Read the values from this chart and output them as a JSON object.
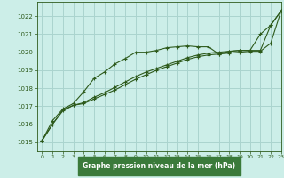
{
  "title": "Graphe pression niveau de la mer (hPa)",
  "bg_color": "#cceee8",
  "grid_color": "#aad4ce",
  "line_color": "#2d5a1b",
  "xlabel_bg": "#3a7a3a",
  "xlabel_fg": "#ffffff",
  "xlim": [
    -0.5,
    23
  ],
  "ylim": [
    1014.5,
    1022.8
  ],
  "yticks": [
    1015,
    1016,
    1017,
    1018,
    1019,
    1020,
    1021,
    1022
  ],
  "xticks": [
    0,
    1,
    2,
    3,
    4,
    5,
    6,
    7,
    8,
    9,
    10,
    11,
    12,
    13,
    14,
    15,
    16,
    17,
    18,
    19,
    20,
    21,
    22,
    23
  ],
  "line1_x": [
    0,
    1,
    2,
    3,
    4,
    5,
    6,
    7,
    8,
    9,
    10,
    11,
    12,
    13,
    14,
    15,
    16,
    17,
    18,
    19,
    20,
    21,
    22,
    23
  ],
  "line1_y": [
    1015.1,
    1016.2,
    1016.85,
    1017.15,
    1017.8,
    1018.55,
    1018.9,
    1019.35,
    1019.65,
    1020.0,
    1020.0,
    1020.1,
    1020.25,
    1020.3,
    1020.35,
    1020.3,
    1020.3,
    1019.9,
    1020.05,
    1020.1,
    1020.1,
    1021.0,
    1021.5,
    1022.3
  ],
  "line2_x": [
    0,
    1,
    2,
    3,
    4,
    5,
    6,
    7,
    8,
    9,
    10,
    11,
    12,
    13,
    14,
    15,
    16,
    17,
    18,
    19,
    20,
    21,
    22,
    23
  ],
  "line2_y": [
    1015.1,
    1016.0,
    1016.8,
    1017.05,
    1017.2,
    1017.5,
    1017.75,
    1018.05,
    1018.35,
    1018.65,
    1018.9,
    1019.1,
    1019.3,
    1019.5,
    1019.7,
    1019.85,
    1019.95,
    1020.0,
    1020.05,
    1020.1,
    1020.1,
    1020.1,
    1021.5,
    1022.3
  ],
  "line3_x": [
    0,
    1,
    2,
    3,
    4,
    5,
    6,
    7,
    8,
    9,
    10,
    11,
    12,
    13,
    14,
    15,
    16,
    17,
    18,
    19,
    20,
    21,
    22,
    23
  ],
  "line3_y": [
    1015.1,
    1016.0,
    1016.75,
    1017.05,
    1017.15,
    1017.4,
    1017.65,
    1017.9,
    1018.2,
    1018.5,
    1018.75,
    1019.0,
    1019.2,
    1019.4,
    1019.6,
    1019.75,
    1019.85,
    1019.9,
    1019.95,
    1020.0,
    1020.05,
    1020.05,
    1020.5,
    1022.3
  ]
}
